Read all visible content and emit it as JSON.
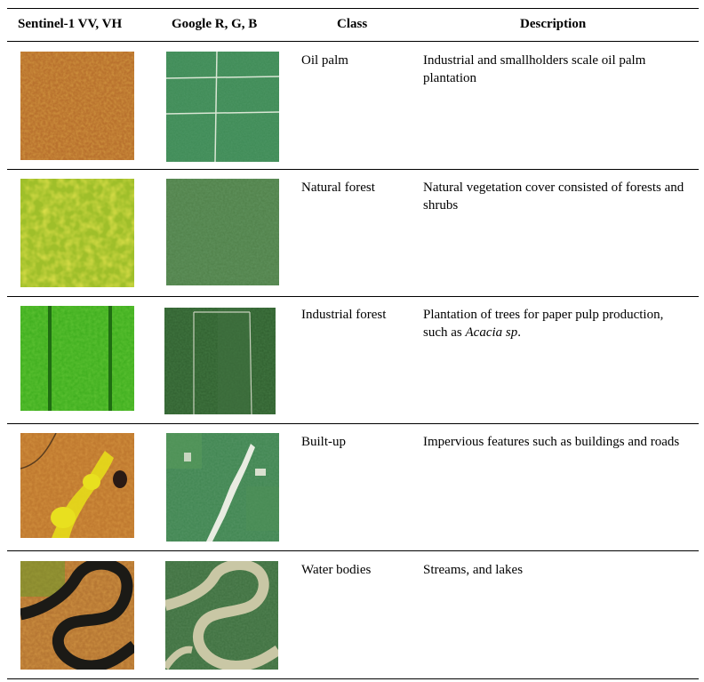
{
  "table": {
    "headers": {
      "sentinel": "Sentinel-1 VV, VH",
      "google": "Google R, G, B",
      "class": "Class",
      "description": "Description"
    },
    "rows": [
      {
        "class": "Oil palm",
        "description": "Industrial and smallholders scale oil palm plantation",
        "sentinel_image": "orange-speckled-texture",
        "google_image": "green-field-with-grid-roads"
      },
      {
        "class": "Natural forest",
        "description": "Natural vegetation cover consisted of forests and shrubs",
        "sentinel_image": "yellow-green-mottled-texture",
        "google_image": "dark-green-forest-canopy"
      },
      {
        "class": "Industrial forest",
        "description_prefix": "Plantation of trees for paper pulp production, such as ",
        "description_italic": "Acacia sp",
        "description_suffix": ".",
        "sentinel_image": "green-texture-with-vertical-lines",
        "google_image": "dark-green-blocks-with-roads"
      },
      {
        "class": "Built-up",
        "description": "Impervious features such as buildings and roads",
        "sentinel_image": "orange-with-yellow-builtup-patches",
        "google_image": "green-with-white-settlement-strip"
      },
      {
        "class": "Water bodies",
        "description": "Streams, and lakes",
        "sentinel_image": "orange-with-dark-meandering-river",
        "google_image": "green-with-beige-meandering-river"
      }
    ]
  },
  "colors": {
    "rule": "#000000",
    "oil_palm_radar": "#c8742a",
    "forest_radar": "#b7c928",
    "industrial_radar": "#3fae1f",
    "google_green": "#3f8a52",
    "river_dark": "#1b1a16",
    "river_beige": "#c9c7a5"
  }
}
